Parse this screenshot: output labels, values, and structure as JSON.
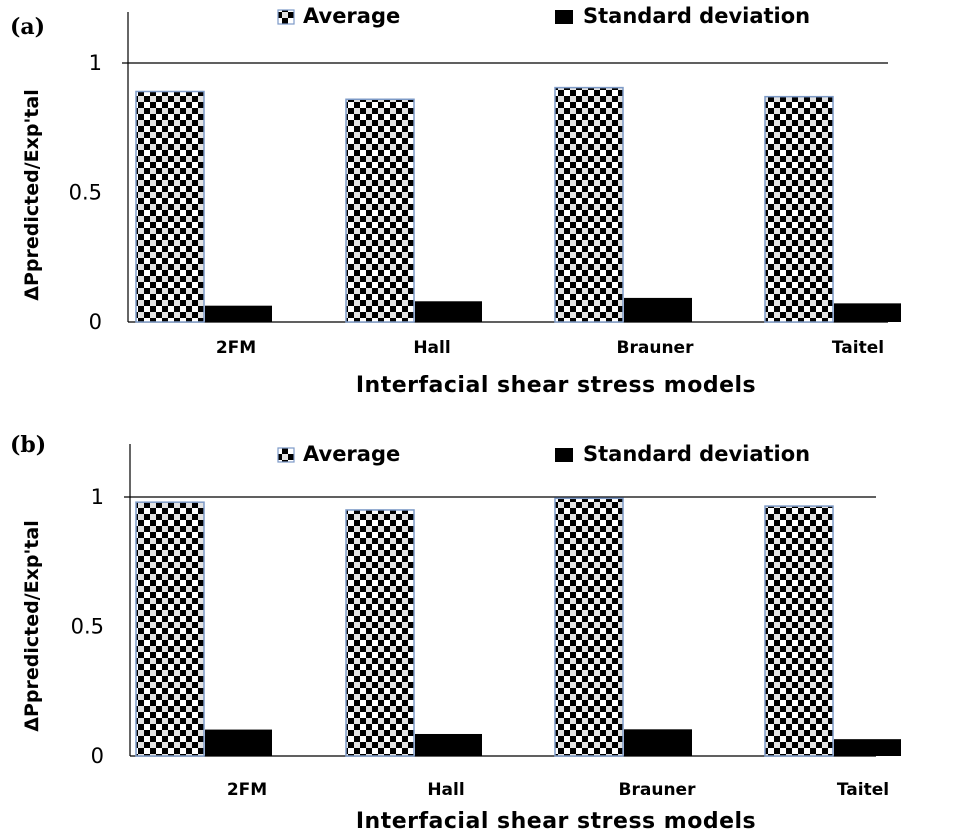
{
  "chart_data": [
    {
      "type": "bar",
      "panel_label": "(a)",
      "categories": [
        "2FM",
        "Hall",
        "Brauner",
        "Taitel"
      ],
      "series": [
        {
          "name": "Average",
          "values": [
            0.89,
            0.86,
            0.905,
            0.87
          ]
        },
        {
          "name": "Standard deviation",
          "values": [
            0.063,
            0.08,
            0.093,
            0.072
          ]
        }
      ],
      "xlabel": "Interfacial shear stress models",
      "ylabel": "ΔPpredicted/Exp'tal",
      "ylim": [
        0,
        1.2
      ],
      "yticks": [
        "0",
        "0.5",
        "1"
      ],
      "legend_position": "top",
      "reference_line_y": 1
    },
    {
      "type": "bar",
      "panel_label": "(b)",
      "categories": [
        "2FM",
        "Hall",
        "Brauner",
        "Taitel"
      ],
      "series": [
        {
          "name": "Average",
          "values": [
            0.98,
            0.95,
            0.995,
            0.965
          ]
        },
        {
          "name": "Standard deviation",
          "values": [
            0.102,
            0.085,
            0.103,
            0.065
          ]
        }
      ],
      "xlabel": "Interfacial shear stress models",
      "ylabel": "ΔPpredicted/Exp'tal",
      "ylim": [
        0,
        1.2
      ],
      "yticks": [
        "0",
        "0.5",
        "1"
      ],
      "legend_position": "top",
      "reference_line_y": 1
    }
  ],
  "colors": {
    "average_fill": "checker-pattern",
    "average_outline": "#7d9ac7",
    "stddev_fill": "#000000",
    "axis": "#000000"
  }
}
